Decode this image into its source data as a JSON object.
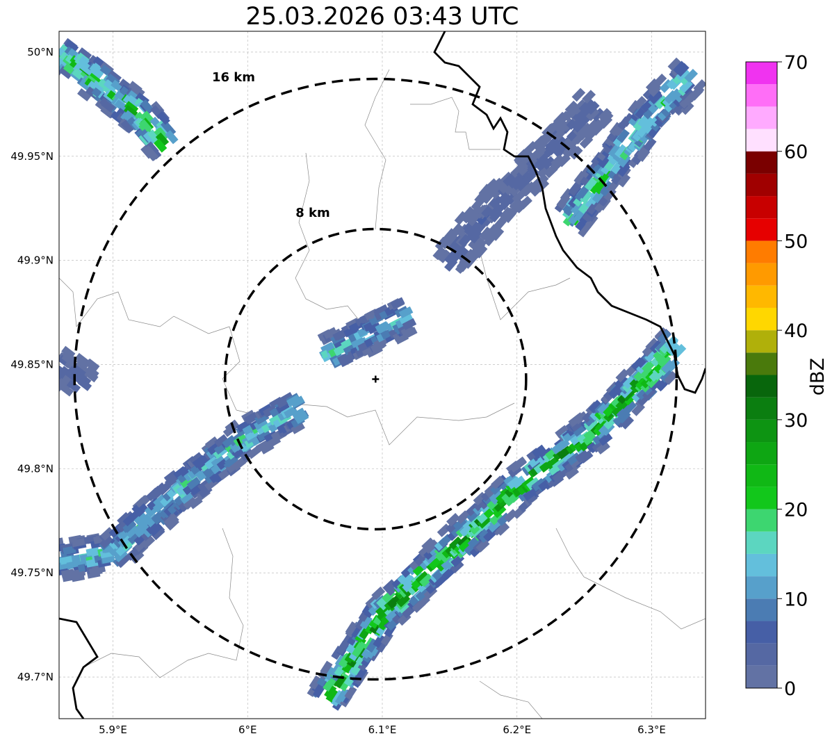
{
  "title": "25.03.2026 03:43 UTC",
  "map": {
    "lon_range": [
      5.86,
      6.34
    ],
    "lat_range": [
      49.68,
      50.01
    ],
    "lon_ticks": [
      {
        "value": 5.9,
        "label": "5.9°E"
      },
      {
        "value": 6.0,
        "label": "6°E"
      },
      {
        "value": 6.1,
        "label": "6.1°E"
      },
      {
        "value": 6.2,
        "label": "6.2°E"
      },
      {
        "value": 6.3,
        "label": "6.3°E"
      }
    ],
    "lat_ticks": [
      {
        "value": 50.0,
        "label": "50°N"
      },
      {
        "value": 49.95,
        "label": "49.95°N"
      },
      {
        "value": 49.9,
        "label": "49.9°N"
      },
      {
        "value": 49.85,
        "label": "49.85°N"
      },
      {
        "value": 49.8,
        "label": "49.8°N"
      },
      {
        "value": 49.75,
        "label": "49.75°N"
      },
      {
        "value": 49.7,
        "label": "49.7°N"
      }
    ],
    "radar_site": {
      "lon": 6.095,
      "lat": 49.843
    },
    "range_rings": [
      {
        "radius_km": 8,
        "label": "8 km"
      },
      {
        "radius_km": 16,
        "label": "16 km"
      }
    ],
    "grid": true
  },
  "colorbar": {
    "label": "dBZ",
    "ticks": [
      0,
      10,
      20,
      30,
      40,
      50,
      60,
      70
    ],
    "range": [
      0,
      70
    ],
    "bins": [
      {
        "from": 0,
        "to": 2.5,
        "color": "#6272a4"
      },
      {
        "from": 2.5,
        "to": 5,
        "color": "#5568a3"
      },
      {
        "from": 5,
        "to": 7.5,
        "color": "#465fa6"
      },
      {
        "from": 7.5,
        "to": 10,
        "color": "#4b7cb3"
      },
      {
        "from": 10,
        "to": 12.5,
        "color": "#57a0cb"
      },
      {
        "from": 12.5,
        "to": 15,
        "color": "#63bfdc"
      },
      {
        "from": 15,
        "to": 17.5,
        "color": "#5cd6c0"
      },
      {
        "from": 17.5,
        "to": 20,
        "color": "#3dd670"
      },
      {
        "from": 20,
        "to": 22.5,
        "color": "#12c71b"
      },
      {
        "from": 22.5,
        "to": 25,
        "color": "#10b815"
      },
      {
        "from": 25,
        "to": 27.5,
        "color": "#0ea613"
      },
      {
        "from": 27.5,
        "to": 30,
        "color": "#0d9412"
      },
      {
        "from": 30,
        "to": 32.5,
        "color": "#0b7e10"
      },
      {
        "from": 32.5,
        "to": 35,
        "color": "#08660c"
      },
      {
        "from": 35,
        "to": 37.5,
        "color": "#4a7a0c"
      },
      {
        "from": 37.5,
        "to": 40,
        "color": "#b0b00a"
      },
      {
        "from": 40,
        "to": 42.5,
        "color": "#ffd700"
      },
      {
        "from": 42.5,
        "to": 45,
        "color": "#ffb800"
      },
      {
        "from": 45,
        "to": 47.5,
        "color": "#ff9a00"
      },
      {
        "from": 47.5,
        "to": 50,
        "color": "#ff7c00"
      },
      {
        "from": 50,
        "to": 52.5,
        "color": "#e60000"
      },
      {
        "from": 52.5,
        "to": 55,
        "color": "#c80000"
      },
      {
        "from": 55,
        "to": 57.5,
        "color": "#a00000"
      },
      {
        "from": 57.5,
        "to": 60,
        "color": "#7a0000"
      },
      {
        "from": 60,
        "to": 62.5,
        "color": "#ffe0ff"
      },
      {
        "from": 62.5,
        "to": 65,
        "color": "#ffaaff"
      },
      {
        "from": 65,
        "to": 67.5,
        "color": "#ff6ef7"
      },
      {
        "from": 67.5,
        "to": 70,
        "color": "#f033f0"
      }
    ]
  },
  "reflectivity_bands": [
    {
      "name": "northwest-cluster",
      "polyline": [
        [
          5.86,
          50.0
        ],
        [
          5.88,
          49.99
        ],
        [
          5.92,
          49.97
        ],
        [
          5.94,
          49.955
        ]
      ],
      "peak_dbz": 28
    },
    {
      "name": "west-edge-cell",
      "polyline": [
        [
          5.86,
          49.85
        ],
        [
          5.88,
          49.84
        ]
      ],
      "peak_dbz": 5
    },
    {
      "name": "southwest-band",
      "polyline": [
        [
          5.86,
          49.755
        ],
        [
          5.9,
          49.76
        ],
        [
          5.95,
          49.79
        ],
        [
          6.0,
          49.815
        ],
        [
          6.04,
          49.83
        ]
      ],
      "peak_dbz": 20
    },
    {
      "name": "central-cell",
      "polyline": [
        [
          6.06,
          49.855
        ],
        [
          6.09,
          49.865
        ],
        [
          6.12,
          49.875
        ]
      ],
      "peak_dbz": 18
    },
    {
      "name": "northeast-band",
      "polyline": [
        [
          6.15,
          49.9
        ],
        [
          6.19,
          49.93
        ],
        [
          6.23,
          49.955
        ],
        [
          6.26,
          49.975
        ]
      ],
      "peak_dbz": 5
    },
    {
      "name": "east-band",
      "polyline": [
        [
          6.24,
          49.92
        ],
        [
          6.3,
          49.97
        ],
        [
          6.33,
          49.99
        ]
      ],
      "peak_dbz": 22
    },
    {
      "name": "southeast-band",
      "polyline": [
        [
          6.06,
          49.69
        ],
        [
          6.1,
          49.73
        ],
        [
          6.15,
          49.76
        ],
        [
          6.2,
          49.79
        ],
        [
          6.26,
          49.82
        ],
        [
          6.32,
          49.86
        ]
      ],
      "peak_dbz": 32
    }
  ]
}
